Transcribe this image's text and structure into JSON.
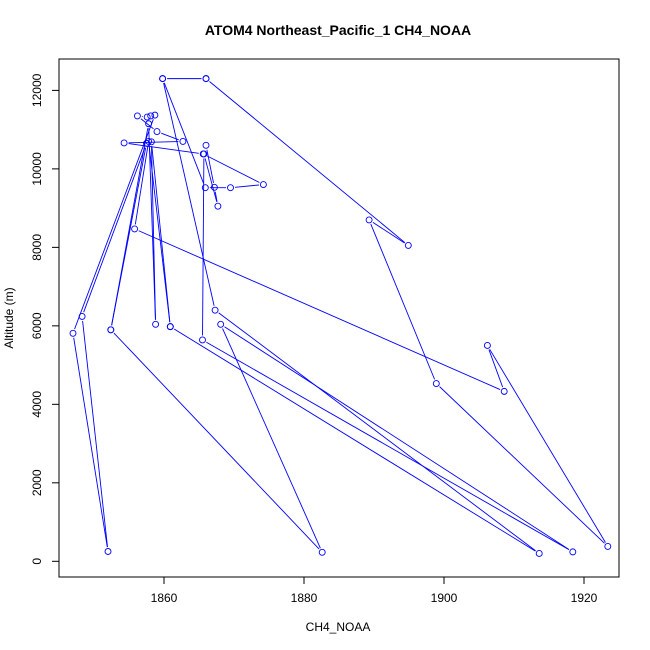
{
  "chart_data": {
    "type": "scatter",
    "title": "ATOM4 Northeast_Pacific_1 CH4_NOAA",
    "xlabel": "CH4_NOAA",
    "ylabel": "Altitude (m)",
    "xlim": [
      1845,
      1925
    ],
    "ylim": [
      -400,
      12800
    ],
    "x_ticks": [
      1860,
      1880,
      1900,
      1920
    ],
    "y_ticks": [
      0,
      2000,
      4000,
      6000,
      8000,
      10000,
      12000
    ],
    "grid": false,
    "legend": "none",
    "connect_points": true,
    "series": [
      {
        "color": "#0000ff",
        "marker": "open-circle",
        "points": [
          {
            "x": 1866.0,
            "y": 12300
          },
          {
            "x": 1859.8,
            "y": 12300
          },
          {
            "x": 1865.9,
            "y": 9520
          },
          {
            "x": 1869.5,
            "y": 9520
          },
          {
            "x": 1874.2,
            "y": 9600
          },
          {
            "x": 1865.6,
            "y": 10380
          },
          {
            "x": 1854.3,
            "y": 10660
          },
          {
            "x": 1862.7,
            "y": 10700
          },
          {
            "x": 1859.0,
            "y": 10950
          },
          {
            "x": 1856.2,
            "y": 11350
          },
          {
            "x": 1857.6,
            "y": 11320
          },
          {
            "x": 1858.1,
            "y": 11350
          },
          {
            "x": 1858.7,
            "y": 11370
          },
          {
            "x": 1847.0,
            "y": 5810
          },
          {
            "x": 1852.0,
            "y": 250
          },
          {
            "x": 1848.3,
            "y": 6240
          },
          {
            "x": 1857.5,
            "y": 10650
          },
          {
            "x": 1852.4,
            "y": 5900
          },
          {
            "x": 1857.8,
            "y": 11150
          },
          {
            "x": 1858.8,
            "y": 6040
          },
          {
            "x": 1858.2,
            "y": 10690
          },
          {
            "x": 1860.9,
            "y": 5980
          },
          {
            "x": 1857.8,
            "y": 10700
          },
          {
            "x": 1855.8,
            "y": 8470
          },
          {
            "x": 1908.6,
            "y": 4330
          },
          {
            "x": 1906.2,
            "y": 5500
          },
          {
            "x": 1923.4,
            "y": 380
          },
          {
            "x": 1898.9,
            "y": 4530
          },
          {
            "x": 1889.3,
            "y": 8700
          },
          {
            "x": 1894.9,
            "y": 8050
          },
          {
            "x": 1866.0,
            "y": 12300
          }
        ]
      },
      {
        "color": "#0000ff",
        "marker": "open-circle",
        "points": [
          {
            "x": 1866.0,
            "y": 10600
          },
          {
            "x": 1867.2,
            "y": 9530
          },
          {
            "x": 1867.7,
            "y": 9050
          },
          {
            "x": 1865.7,
            "y": 10380
          },
          {
            "x": 1865.5,
            "y": 5640
          },
          {
            "x": 1918.4,
            "y": 240
          },
          {
            "x": 1868.1,
            "y": 6040
          },
          {
            "x": 1882.6,
            "y": 230
          },
          {
            "x": 1852.4,
            "y": 5900
          }
        ]
      },
      {
        "color": "#0000ff",
        "marker": "open-circle",
        "points": [
          {
            "x": 1859.8,
            "y": 12300
          },
          {
            "x": 1867.3,
            "y": 6400
          },
          {
            "x": 1913.6,
            "y": 200
          },
          {
            "x": 1860.9,
            "y": 5980
          }
        ]
      }
    ]
  }
}
